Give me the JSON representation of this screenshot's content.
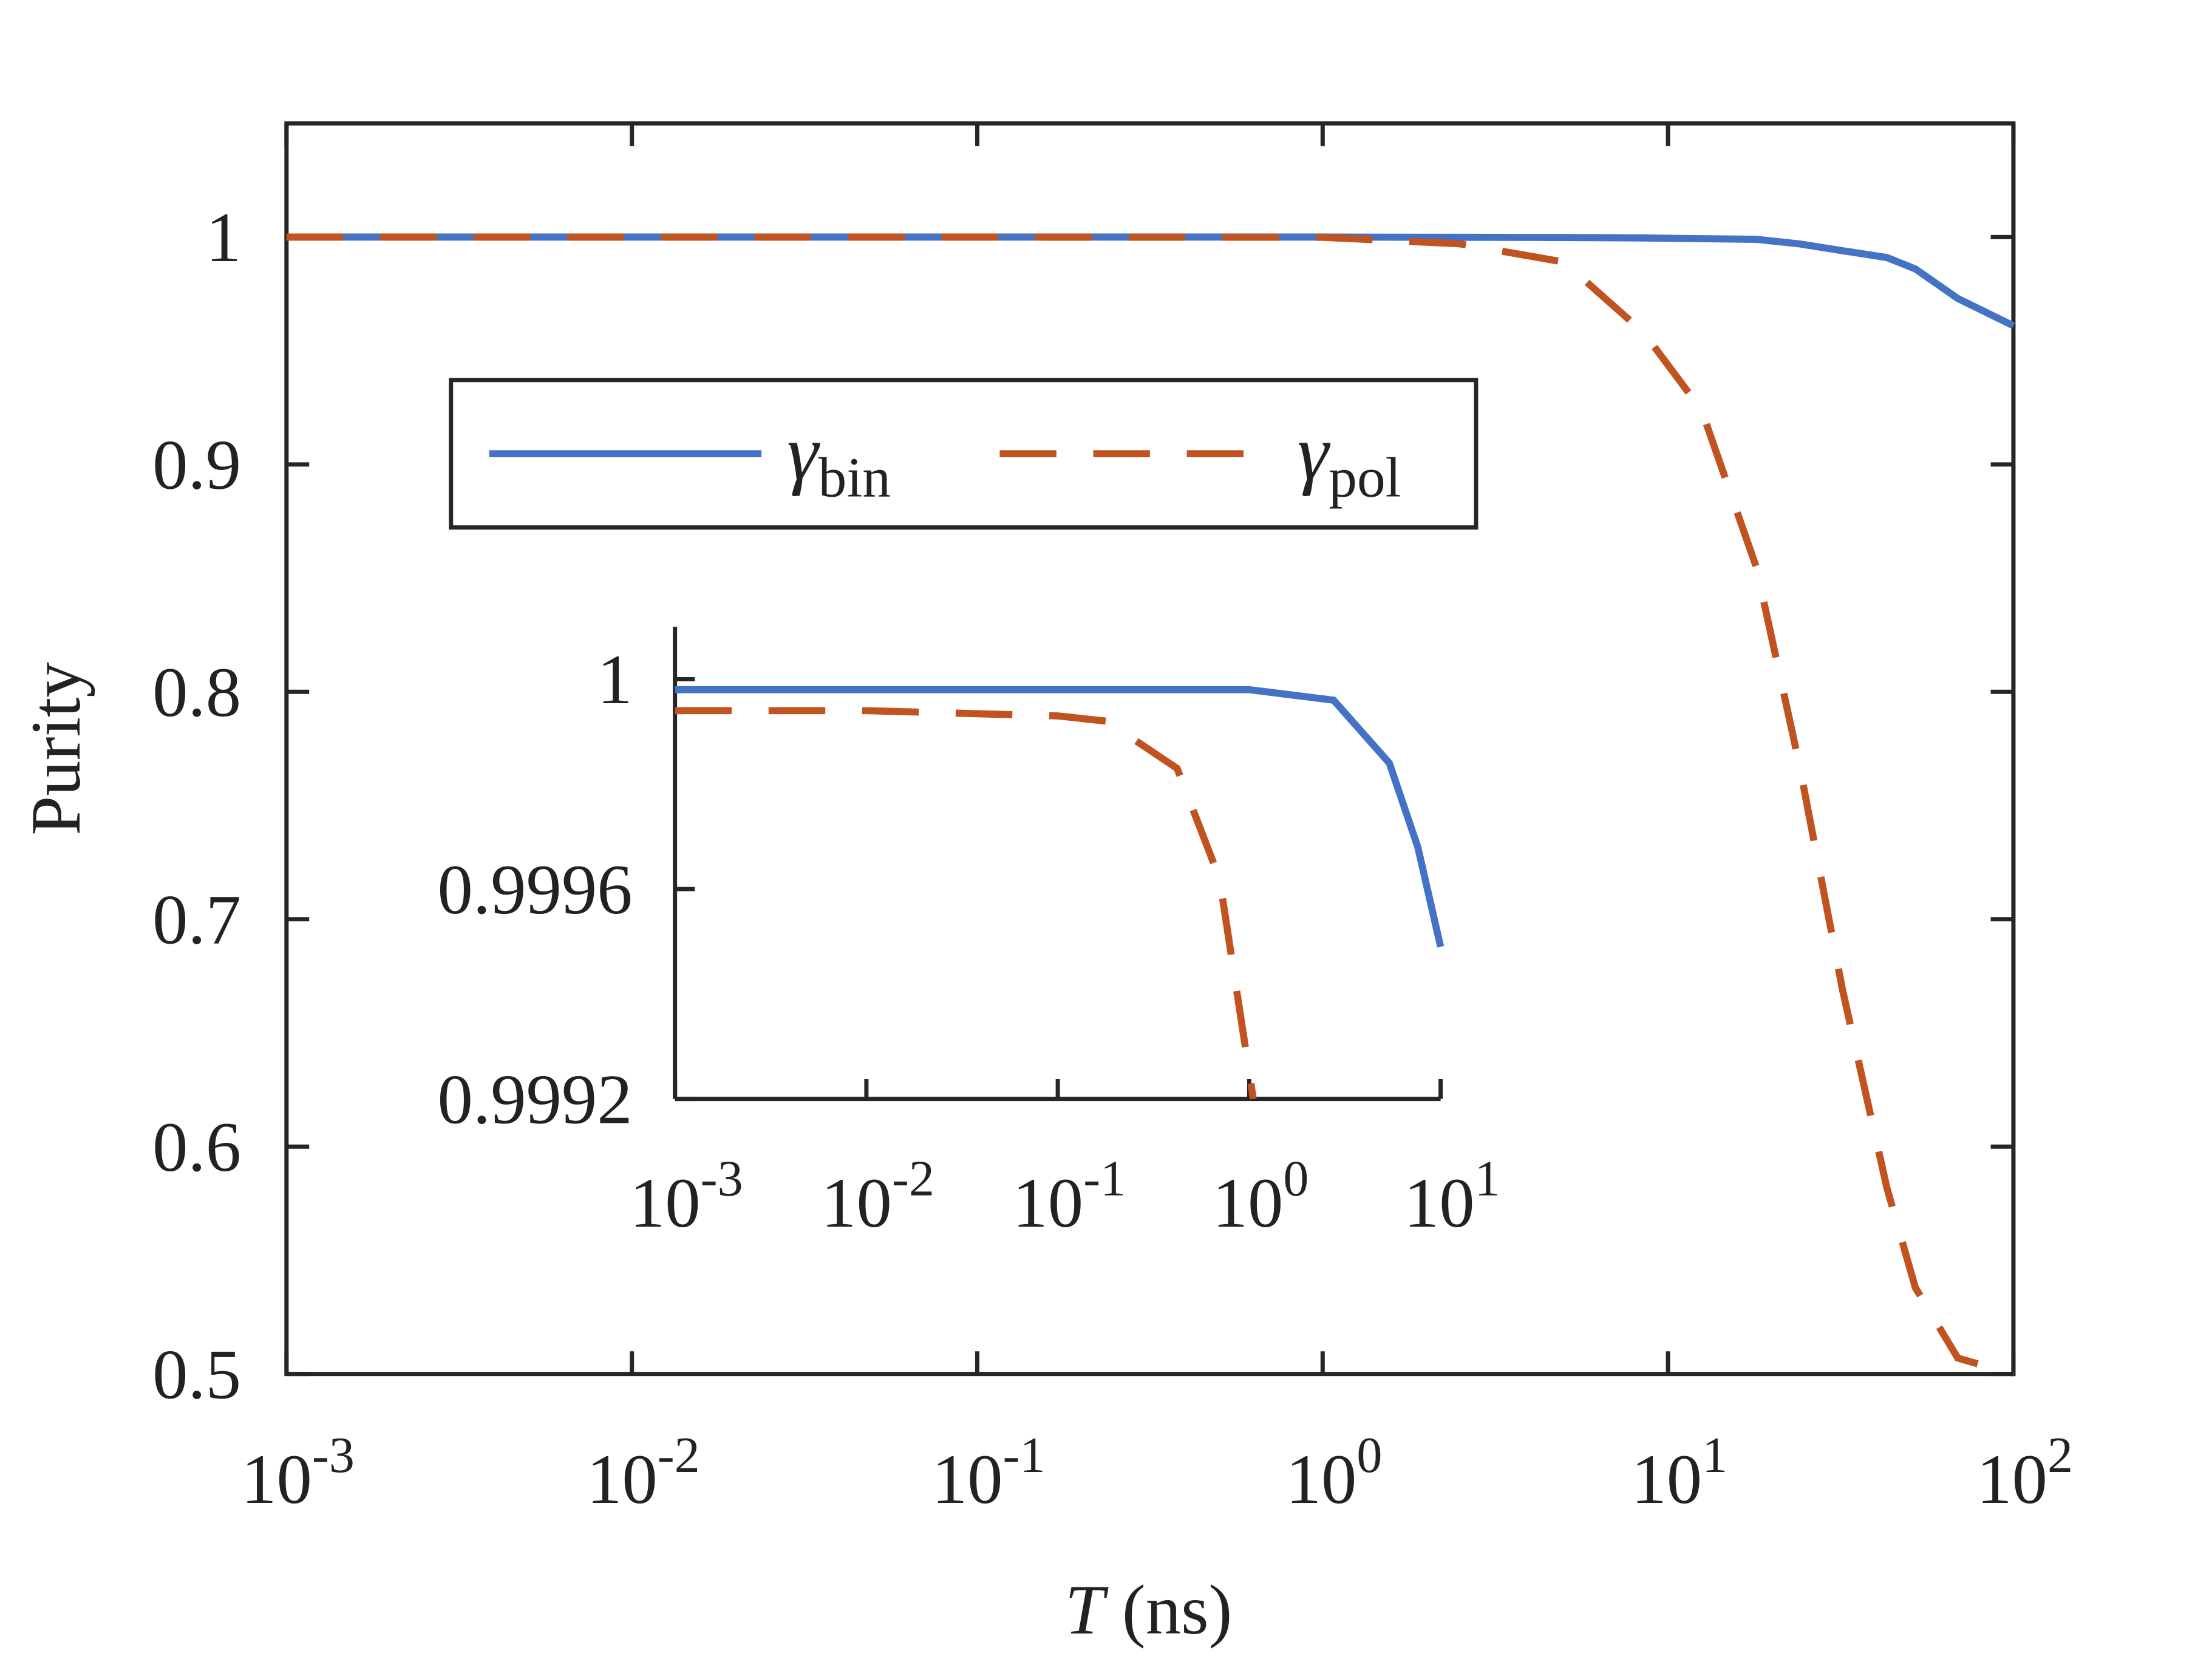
{
  "chart_data": [
    {
      "type": "line",
      "xlabel": "T (ns)",
      "ylabel": "Purity",
      "log_x": true,
      "grid": false,
      "legend": "top-left",
      "xlim": [
        0.001,
        100
      ],
      "ylim": [
        0.5,
        1.05
      ],
      "xticks": [
        {
          "value": 0.001,
          "label": "10-3"
        },
        {
          "value": 0.01,
          "label": "10-2"
        },
        {
          "value": 0.1,
          "label": "10-1"
        },
        {
          "value": 1,
          "label": "100"
        },
        {
          "value": 10,
          "label": "101"
        },
        {
          "value": 100,
          "label": "102"
        }
      ],
      "yticks": [
        0.5,
        0.6,
        0.7,
        0.8,
        0.9,
        1
      ],
      "series": [
        {
          "name": "γbin",
          "color": "#4472c4",
          "dash": false,
          "x": [
            0.001,
            0.01,
            0.1,
            1,
            2.5,
            5,
            8.5,
            12.5,
            18,
            24,
            32,
            43,
            52,
            69,
            100
          ],
          "values": [
            1,
            1,
            1,
            1,
            0.9999,
            0.9998,
            0.9996,
            0.9993,
            0.999,
            0.997,
            0.994,
            0.991,
            0.986,
            0.973,
            0.961
          ]
        },
        {
          "name": "γpol",
          "color": "#c0531f",
          "dash": true,
          "x": [
            0.001,
            0.01,
            0.1,
            1,
            2.5,
            5,
            8.5,
            12.5,
            18,
            24,
            32,
            43,
            52,
            69,
            100
          ],
          "values": [
            1,
            1,
            1,
            0.9999,
            0.997,
            0.989,
            0.958,
            0.924,
            0.855,
            0.768,
            0.669,
            0.582,
            0.538,
            0.507,
            0.5
          ]
        }
      ]
    },
    {
      "type": "line",
      "log_x": true,
      "grid": false,
      "xlim": [
        0.001,
        10
      ],
      "ylim": [
        0.9992,
        1.0001
      ],
      "xticks": [
        {
          "value": 0.001,
          "label": "10-3"
        },
        {
          "value": 0.01,
          "label": "10-2"
        },
        {
          "value": 0.1,
          "label": "10-1"
        },
        {
          "value": 1,
          "label": "100"
        },
        {
          "value": 10,
          "label": "101"
        }
      ],
      "yticks": [
        0.9992,
        0.9996,
        1
      ],
      "series": [
        {
          "color": "#4472c4",
          "dash": false,
          "x": [
            0.001,
            0.01,
            0.1,
            1,
            2.76,
            5.4,
            7.6,
            10
          ],
          "values": [
            0.99998,
            0.99998,
            0.99998,
            0.99998,
            0.99996,
            0.99984,
            0.99968,
            0.99949
          ]
        },
        {
          "color": "#c0531f",
          "dash": true,
          "x": [
            0.001,
            0.01,
            0.1,
            0.18,
            0.42,
            0.7,
            1.05
          ],
          "values": [
            0.99994,
            0.99994,
            0.99993,
            0.99992,
            0.99983,
            0.99962,
            0.9992
          ]
        }
      ]
    }
  ]
}
